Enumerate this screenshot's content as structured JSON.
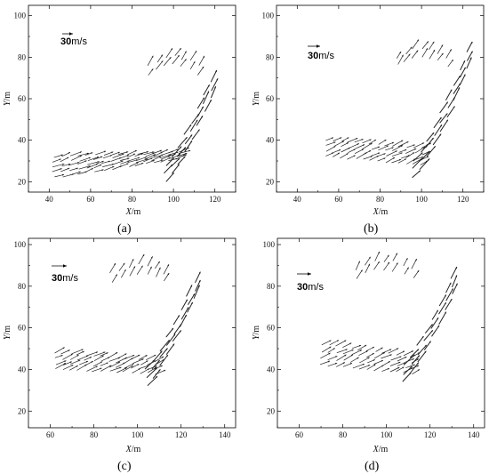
{
  "colors": {
    "vectors": "#222222",
    "axes": "#000000",
    "background": "#ffffff"
  },
  "chart_data": [
    {
      "type": "vector-field",
      "panel_label": "(a)",
      "xlabel_var": "X",
      "xlabel_unit": "/m",
      "ylabel_var": "Y",
      "ylabel_unit": "/m",
      "xlim": [
        30,
        130
      ],
      "ylim": [
        15,
        105
      ],
      "xticks": [
        40,
        60,
        80,
        100,
        120
      ],
      "yticks": [
        20,
        40,
        60,
        80,
        100
      ],
      "reference_vector": {
        "value": "30",
        "unit": "m/s",
        "position": "top-left"
      },
      "regions": [
        {
          "name": "lower band",
          "x_range": [
            42,
            102
          ],
          "y_bottom": [
            22,
            31
          ],
          "y_top": [
            32,
            34
          ],
          "columns": 16,
          "rows": 5,
          "direction_deg": 20
        },
        {
          "name": "right arc",
          "x_range": [
            96,
            118
          ],
          "y_start": 24,
          "y_end": 64,
          "columns": 8,
          "rows": 3,
          "direction_deg": 45
        },
        {
          "name": "upper arc",
          "x_range": [
            88,
            112
          ],
          "y_center": 74,
          "columns": 7,
          "rows": 2,
          "direction_deg": 55
        }
      ]
    },
    {
      "type": "vector-field",
      "panel_label": "(b)",
      "xlabel_var": "X",
      "xlabel_unit": "/m",
      "ylabel_var": "Y",
      "ylabel_unit": "/m",
      "xlim": [
        30,
        130
      ],
      "ylim": [
        15,
        105
      ],
      "xticks": [
        40,
        60,
        80,
        100,
        120
      ],
      "yticks": [
        20,
        40,
        60,
        80,
        100
      ],
      "reference_vector": {
        "value": "30",
        "unit": "m/s",
        "position": "top-left"
      },
      "regions": [
        {
          "name": "lower band",
          "x_range": [
            54,
            100
          ],
          "y_bottom": [
            32,
            28
          ],
          "y_top": [
            40,
            36
          ],
          "columns": 14,
          "rows": 4,
          "direction_deg": 25
        },
        {
          "name": "right arc",
          "x_range": [
            96,
            122
          ],
          "y_start": 26,
          "y_end": 78,
          "columns": 9,
          "rows": 3,
          "direction_deg": 45
        },
        {
          "name": "upper arc",
          "x_range": [
            88,
            112
          ],
          "y_center": 78,
          "columns": 7,
          "rows": 2,
          "direction_deg": 55
        }
      ]
    },
    {
      "type": "vector-field",
      "panel_label": "(c)",
      "xlabel_var": "X",
      "xlabel_unit": "/m",
      "ylabel_var": "Y",
      "ylabel_unit": "/m",
      "xlim": [
        50,
        145
      ],
      "ylim": [
        12,
        103
      ],
      "xticks": [
        60,
        80,
        100,
        120,
        140
      ],
      "yticks": [
        20,
        40,
        60,
        80,
        100
      ],
      "reference_vector": {
        "value": "30",
        "unit": "m/s",
        "position": "top-left"
      },
      "regions": [
        {
          "name": "lower band",
          "x_range": [
            62,
            108
          ],
          "y_bottom": [
            40,
            38
          ],
          "y_top": [
            48,
            44
          ],
          "columns": 14,
          "rows": 4,
          "direction_deg": 25
        },
        {
          "name": "right arc",
          "x_range": [
            104,
            126
          ],
          "y_start": 36,
          "y_end": 78,
          "columns": 8,
          "rows": 3,
          "direction_deg": 45
        },
        {
          "name": "upper arc",
          "x_range": [
            88,
            112
          ],
          "y_center": 84,
          "columns": 7,
          "rows": 2,
          "direction_deg": 60
        }
      ]
    },
    {
      "type": "vector-field",
      "panel_label": "(d)",
      "xlabel_var": "X",
      "xlabel_unit": "/m",
      "ylabel_var": "Y",
      "ylabel_unit": "/m",
      "xlim": [
        50,
        145
      ],
      "ylim": [
        12,
        103
      ],
      "xticks": [
        60,
        80,
        100,
        120,
        140
      ],
      "yticks": [
        20,
        40,
        60,
        80,
        100
      ],
      "reference_vector": {
        "value": "30",
        "unit": "m/s",
        "position": "top-left"
      },
      "regions": [
        {
          "name": "lower band",
          "x_range": [
            70,
            112
          ],
          "y_bottom": [
            42,
            38
          ],
          "y_top": [
            52,
            46
          ],
          "columns": 13,
          "rows": 4,
          "direction_deg": 25
        },
        {
          "name": "right arc",
          "x_range": [
            108,
            130
          ],
          "y_start": 38,
          "y_end": 80,
          "columns": 8,
          "rows": 3,
          "direction_deg": 45
        },
        {
          "name": "upper arc",
          "x_range": [
            86,
            112
          ],
          "y_center": 86,
          "columns": 7,
          "rows": 2,
          "direction_deg": 60
        }
      ]
    }
  ]
}
